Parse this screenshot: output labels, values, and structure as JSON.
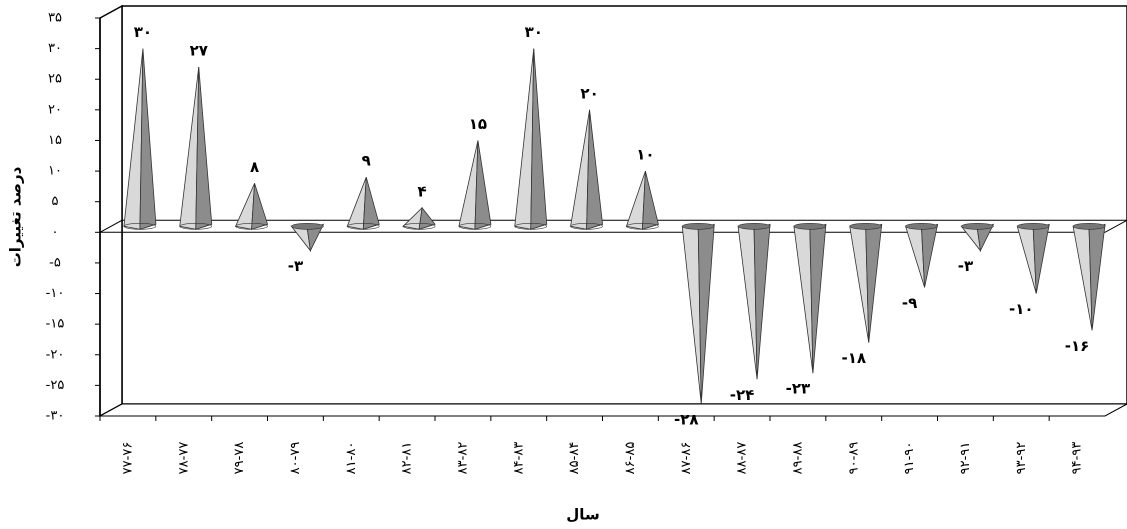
{
  "chart_data": {
    "type": "bar",
    "categories": [
      "۷۷-۷۶",
      "۷۸-۷۷",
      "۷۹-۷۸",
      "۸۰-۷۹",
      "۸۱-۸۰",
      "۸۲-۸۱",
      "۸۳-۸۲",
      "۸۴-۸۳",
      "۸۵-۸۴",
      "۸۶-۸۵",
      "۸۷-۸۶",
      "۸۸-۸۷",
      "۸۹-۸۸",
      "۹۰-۸۹",
      "۹۱-۹۰",
      "۹۲-۹۱",
      "۹۳-۹۲",
      "۹۴-۹۳"
    ],
    "values": [
      30,
      27,
      8,
      -3,
      9,
      4,
      15,
      30,
      20,
      10,
      -28,
      -24,
      -23,
      -18,
      -9,
      -3,
      -10,
      -16
    ],
    "value_labels": [
      "۳۰",
      "۲۷",
      "۸",
      "-۳",
      "۹",
      "۴",
      "۱۵",
      "۳۰",
      "۲۰",
      "۱۰",
      "-۲۸",
      "-۲۴",
      "-۲۳",
      "-۱۸",
      "-۹",
      "-۳",
      "-۱۰",
      "-۱۶"
    ],
    "color": "#d9d9d9",
    "ylim": [
      -30,
      35
    ],
    "yticks": [
      {
        "value": -30,
        "label": "-۳۰"
      },
      {
        "value": -25,
        "label": "-۲۵"
      },
      {
        "value": -20,
        "label": "-۲۰"
      },
      {
        "value": -15,
        "label": "-۱۵"
      },
      {
        "value": -10,
        "label": "-۱۰"
      },
      {
        "value": -5,
        "label": "-۵"
      },
      {
        "value": 0,
        "label": "۰"
      },
      {
        "value": 5,
        "label": "۵"
      },
      {
        "value": 10,
        "label": "۱۰"
      },
      {
        "value": 15,
        "label": "۱۵"
      },
      {
        "value": 20,
        "label": "۲۰"
      },
      {
        "value": 25,
        "label": "۲۵"
      },
      {
        "value": 30,
        "label": "۳۰"
      },
      {
        "value": 35,
        "label": "۳۵"
      }
    ],
    "x_label": "سال",
    "y_label": "درصد تغییرات"
  }
}
